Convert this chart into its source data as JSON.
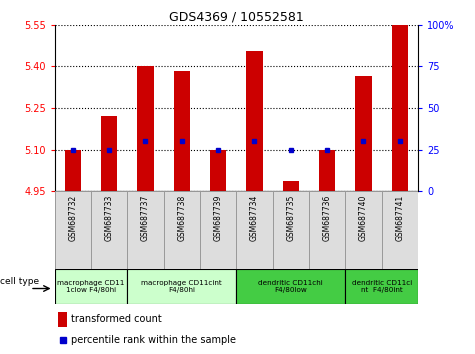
{
  "title": "GDS4369 / 10552581",
  "samples": [
    "GSM687732",
    "GSM687733",
    "GSM687737",
    "GSM687738",
    "GSM687739",
    "GSM687734",
    "GSM687735",
    "GSM687736",
    "GSM687740",
    "GSM687741"
  ],
  "transformed_counts": [
    5.1,
    5.22,
    5.4,
    5.385,
    5.1,
    5.455,
    4.985,
    5.1,
    5.365,
    5.55
  ],
  "percentile_yvals": [
    5.1,
    5.1,
    5.13,
    5.13,
    5.1,
    5.13,
    5.1,
    5.1,
    5.13,
    5.13
  ],
  "ylim_left": [
    4.95,
    5.55
  ],
  "ylim_right": [
    0,
    100
  ],
  "yticks_left": [
    4.95,
    5.1,
    5.25,
    5.4,
    5.55
  ],
  "yticks_right": [
    0,
    25,
    50,
    75,
    100
  ],
  "bar_color": "#cc0000",
  "marker_color": "#0000cc",
  "bar_width": 0.45,
  "cell_groups": [
    {
      "label": "macrophage CD11\n1clow F4/80hi",
      "start": 0,
      "end": 2,
      "color": "#ccffcc"
    },
    {
      "label": "macrophage CD11cint\nF4/80hi",
      "start": 2,
      "end": 5,
      "color": "#ccffcc"
    },
    {
      "label": "dendritic CD11chi\nF4/80low",
      "start": 5,
      "end": 8,
      "color": "#44cc44"
    },
    {
      "label": "dendritic CD11ci\nnt  F4/80int",
      "start": 8,
      "end": 10,
      "color": "#44cc44"
    }
  ],
  "legend_red": "transformed count",
  "legend_blue": "percentile rank within the sample",
  "baseline": 4.95,
  "cell_type_label": "cell type"
}
